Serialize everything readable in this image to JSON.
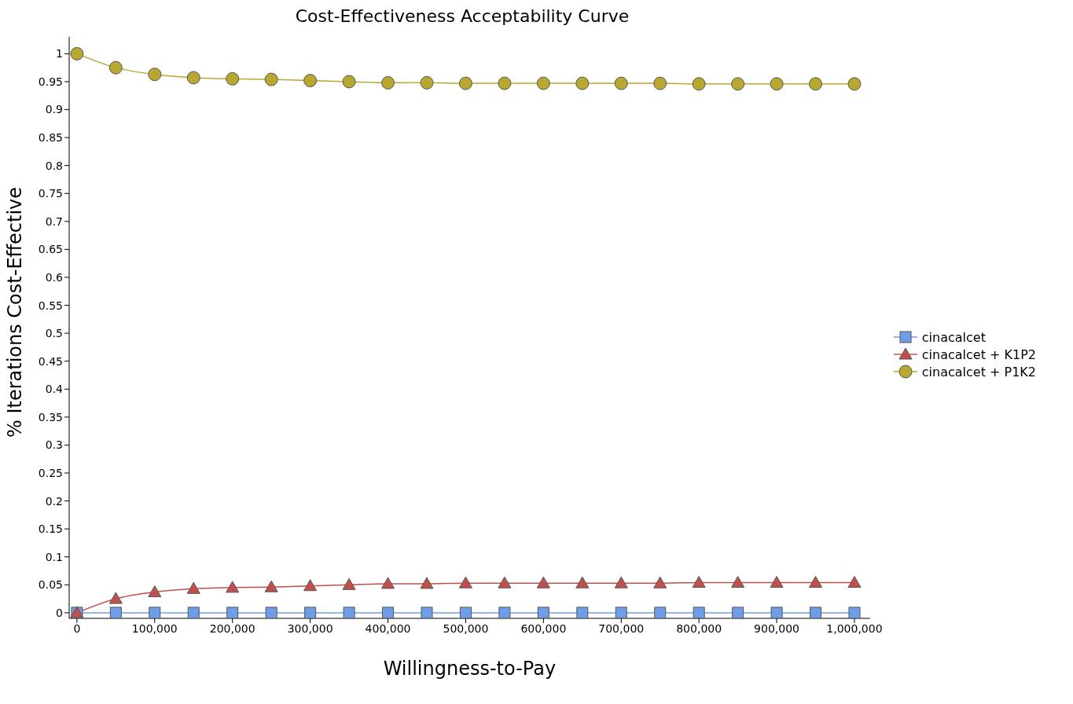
{
  "chart_data": {
    "type": "line",
    "title": "Cost-Effectiveness Acceptability Curve",
    "xlabel": "Willingness-to-Pay",
    "ylabel": "% Iterations Cost-Effective",
    "x": [
      0,
      50000,
      100000,
      150000,
      200000,
      250000,
      300000,
      350000,
      400000,
      450000,
      500000,
      550000,
      600000,
      650000,
      700000,
      750000,
      800000,
      850000,
      900000,
      950000,
      1000000
    ],
    "series": [
      {
        "name": "cinacalcet",
        "color": "#6f9ee8",
        "marker": "square",
        "values": [
          0,
          0,
          0,
          0,
          0,
          0,
          0,
          0,
          0,
          0,
          0,
          0,
          0,
          0,
          0,
          0,
          0,
          0,
          0,
          0,
          0
        ]
      },
      {
        "name": "cinacalcet + K1P2",
        "color": "#c0504d",
        "marker": "triangle",
        "values": [
          0,
          0.025,
          0.037,
          0.043,
          0.045,
          0.046,
          0.048,
          0.05,
          0.052,
          0.052,
          0.053,
          0.053,
          0.053,
          0.053,
          0.053,
          0.053,
          0.054,
          0.054,
          0.054,
          0.054,
          0.054
        ]
      },
      {
        "name": "cinacalcet + P1K2",
        "color": "#b8a832",
        "marker": "circle",
        "values": [
          1,
          0.975,
          0.963,
          0.957,
          0.955,
          0.954,
          0.952,
          0.95,
          0.948,
          0.948,
          0.947,
          0.947,
          0.947,
          0.947,
          0.947,
          0.947,
          0.946,
          0.946,
          0.946,
          0.946,
          0.946
        ]
      }
    ],
    "xlim": [
      -10000,
      1020000
    ],
    "xticks": [
      {
        "value": 0,
        "label": "0"
      },
      {
        "value": 100000,
        "label": "100,000"
      },
      {
        "value": 200000,
        "label": "200,000"
      },
      {
        "value": 300000,
        "label": "300,000"
      },
      {
        "value": 400000,
        "label": "400,000"
      },
      {
        "value": 500000,
        "label": "500,000"
      },
      {
        "value": 600000,
        "label": "600,000"
      },
      {
        "value": 700000,
        "label": "700,000"
      },
      {
        "value": 800000,
        "label": "800,000"
      },
      {
        "value": 900000,
        "label": "900,000"
      },
      {
        "value": 1000000,
        "label": "1,000,000"
      }
    ],
    "ylim": [
      -0.01,
      1.03
    ],
    "yticks": [
      0,
      0.05,
      0.1,
      0.15,
      0.2,
      0.25,
      0.3,
      0.35,
      0.4,
      0.45,
      0.5,
      0.55,
      0.6,
      0.65,
      0.7,
      0.75,
      0.8,
      0.85,
      0.9,
      0.95,
      1
    ],
    "grid": false,
    "legend": "right",
    "line_style": "solid"
  }
}
